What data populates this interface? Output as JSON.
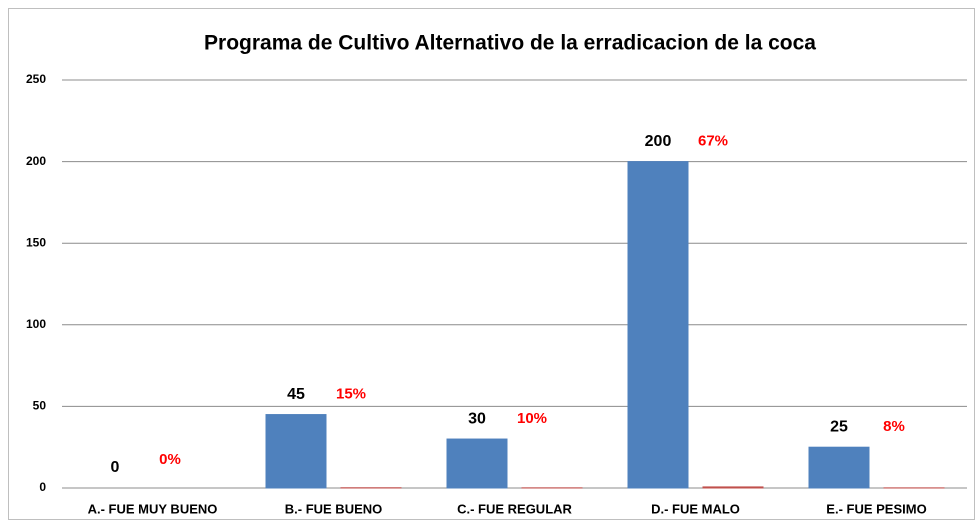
{
  "chart_data": {
    "type": "bar",
    "title": "Programa de Cultivo Alternativo de la erradicacion de la coca",
    "categories": [
      "A.- FUE MUY BUENO",
      "B.- FUE BUENO",
      "C.- FUE REGULAR",
      "D.- FUE MALO",
      "E.- FUE PESIMO"
    ],
    "series": [
      {
        "color": "#4f81bd",
        "values": [
          0,
          45,
          30,
          200,
          25
        ]
      },
      {
        "color": "#c0504d",
        "values": [
          0,
          0.15,
          0.1,
          0.67,
          0.08
        ],
        "value_labels": [
          "0%",
          "15%",
          "10%",
          "67%",
          "8%"
        ]
      }
    ],
    "ylim": [
      0,
      250
    ],
    "yticks": [
      0,
      50,
      100,
      150,
      200,
      250
    ],
    "grid": true
  }
}
